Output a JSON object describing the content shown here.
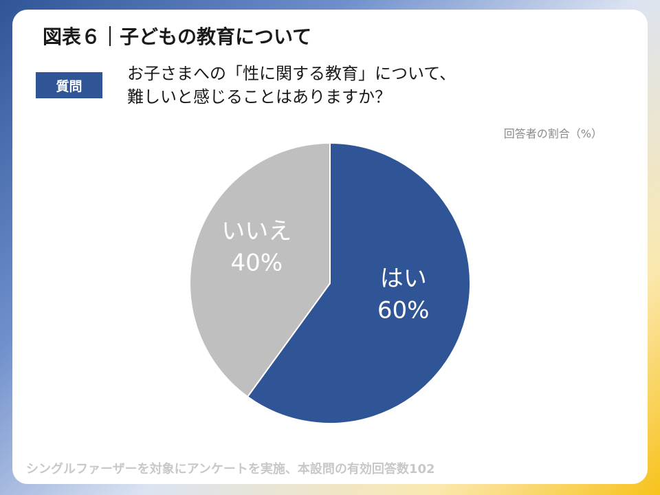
{
  "header": {
    "title": "図表６｜子どもの教育について",
    "badge": "質問",
    "question_line1": "お子さまへの「性に関する教育」について、",
    "question_line2": "難しいと感じることはありますか？",
    "unit_note": "回答者の割合（%）"
  },
  "footer": {
    "note": "シングルファーザーを対象にアンケートを実施、本設問の有効回答数102"
  },
  "chart_data": {
    "type": "pie",
    "categories": [
      "はい",
      "いいえ"
    ],
    "values": [
      60,
      40
    ],
    "value_labels": [
      "60%",
      "40%"
    ],
    "colors": [
      "#2f5597",
      "#bfbfbf"
    ],
    "label_colors": [
      "#ffffff",
      "#ffffff"
    ]
  }
}
